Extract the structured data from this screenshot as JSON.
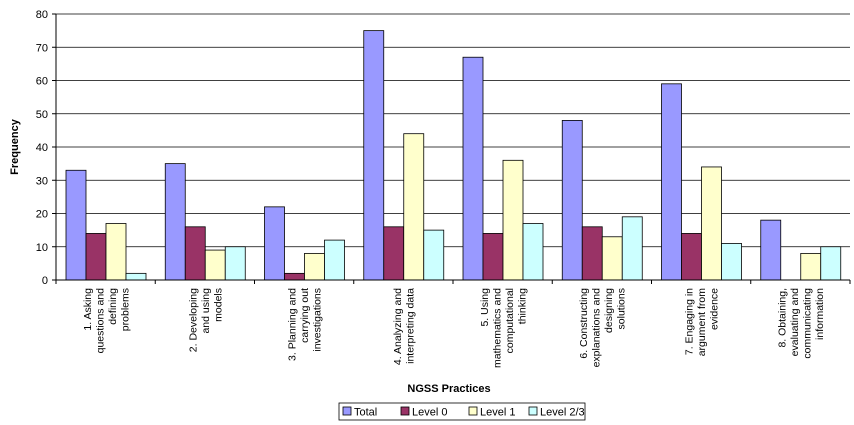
{
  "chart_data": {
    "type": "bar",
    "title": "",
    "xlabel": "NGSS Practices",
    "ylabel": "Frequency",
    "ylim": [
      0,
      80
    ],
    "yticks": [
      0,
      10,
      20,
      30,
      40,
      50,
      60,
      70,
      80
    ],
    "grid": "horizontal",
    "legend_position": "bottom",
    "categories": [
      "1. Asking questions and defining problems",
      "2. Developing and using models",
      "3. Planning and carrying out investigations",
      "4. Analyzing and interpreting data",
      "5. Using mathematics and computational thinking",
      "6. Constructing explanations and designing solutions",
      "7. Engaging in argument from evidence",
      "8. Obtaining, evaluating and communicating information"
    ],
    "category_lines": [
      [
        "1. Asking",
        "questions and",
        "defining",
        "problems"
      ],
      [
        "2. Developing",
        "and using",
        "models"
      ],
      [
        "3. Planning and",
        "carrying out",
        "investigations"
      ],
      [
        "4. Analyzing and",
        "interpreting data"
      ],
      [
        "5. Using",
        "mathematics and",
        "computational",
        "thinking"
      ],
      [
        "6. Constructing",
        "explanations and",
        "designing",
        "solutions"
      ],
      [
        "7. Engaging in",
        "argument from",
        "evidence"
      ],
      [
        "8. Obtaining,",
        "evaluating and",
        "communicating",
        "information"
      ]
    ],
    "series": [
      {
        "name": "Total",
        "color": "#9999ff",
        "values": [
          33,
          35,
          22,
          75,
          67,
          48,
          59,
          18
        ]
      },
      {
        "name": "Level 0",
        "color": "#993366",
        "values": [
          14,
          16,
          2,
          16,
          14,
          16,
          14,
          0
        ]
      },
      {
        "name": "Level 1",
        "color": "#ffffcc",
        "values": [
          17,
          9,
          8,
          44,
          36,
          13,
          34,
          8
        ]
      },
      {
        "name": "Level 2/3",
        "color": "#ccffff",
        "values": [
          2,
          10,
          12,
          15,
          17,
          19,
          11,
          10
        ]
      }
    ]
  }
}
